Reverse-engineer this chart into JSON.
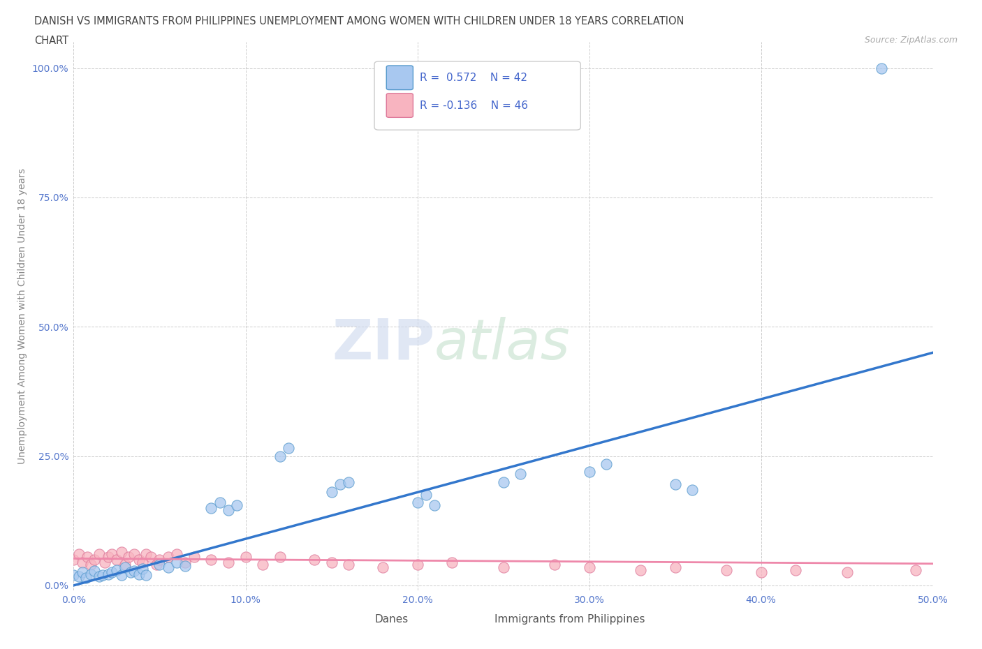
{
  "title_line1": "DANISH VS IMMIGRANTS FROM PHILIPPINES UNEMPLOYMENT AMONG WOMEN WITH CHILDREN UNDER 18 YEARS CORRELATION",
  "title_line2": "CHART",
  "source": "Source: ZipAtlas.com",
  "ylabel": "Unemployment Among Women with Children Under 18 years",
  "xlim": [
    0.0,
    0.5
  ],
  "ylim": [
    -0.01,
    1.05
  ],
  "xticks": [
    0.0,
    0.1,
    0.2,
    0.3,
    0.4,
    0.5
  ],
  "xticklabels": [
    "0.0%",
    "10.0%",
    "20.0%",
    "30.0%",
    "40.0%",
    "50.0%"
  ],
  "ytick_positions": [
    0.0,
    0.25,
    0.5,
    0.75,
    1.0
  ],
  "yticklabels": [
    "0.0%",
    "25.0%",
    "50.0%",
    "75.0%",
    "100.0%"
  ],
  "danes_R": 0.572,
  "danes_N": 42,
  "phil_R": -0.136,
  "phil_N": 46,
  "danes_color": "#a8c8f0",
  "danes_edge": "#5599cc",
  "phil_color": "#f8b4c0",
  "phil_edge": "#dd7799",
  "trendline_danes_color": "#3377cc",
  "trendline_phil_color": "#ee88aa",
  "background_color": "#ffffff",
  "grid_color": "#cccccc",
  "tick_color": "#5577cc",
  "watermark_zip_color": "#d0ddf0",
  "watermark_atlas_color": "#c8e8d0",
  "legend_text_color": "#4466cc"
}
